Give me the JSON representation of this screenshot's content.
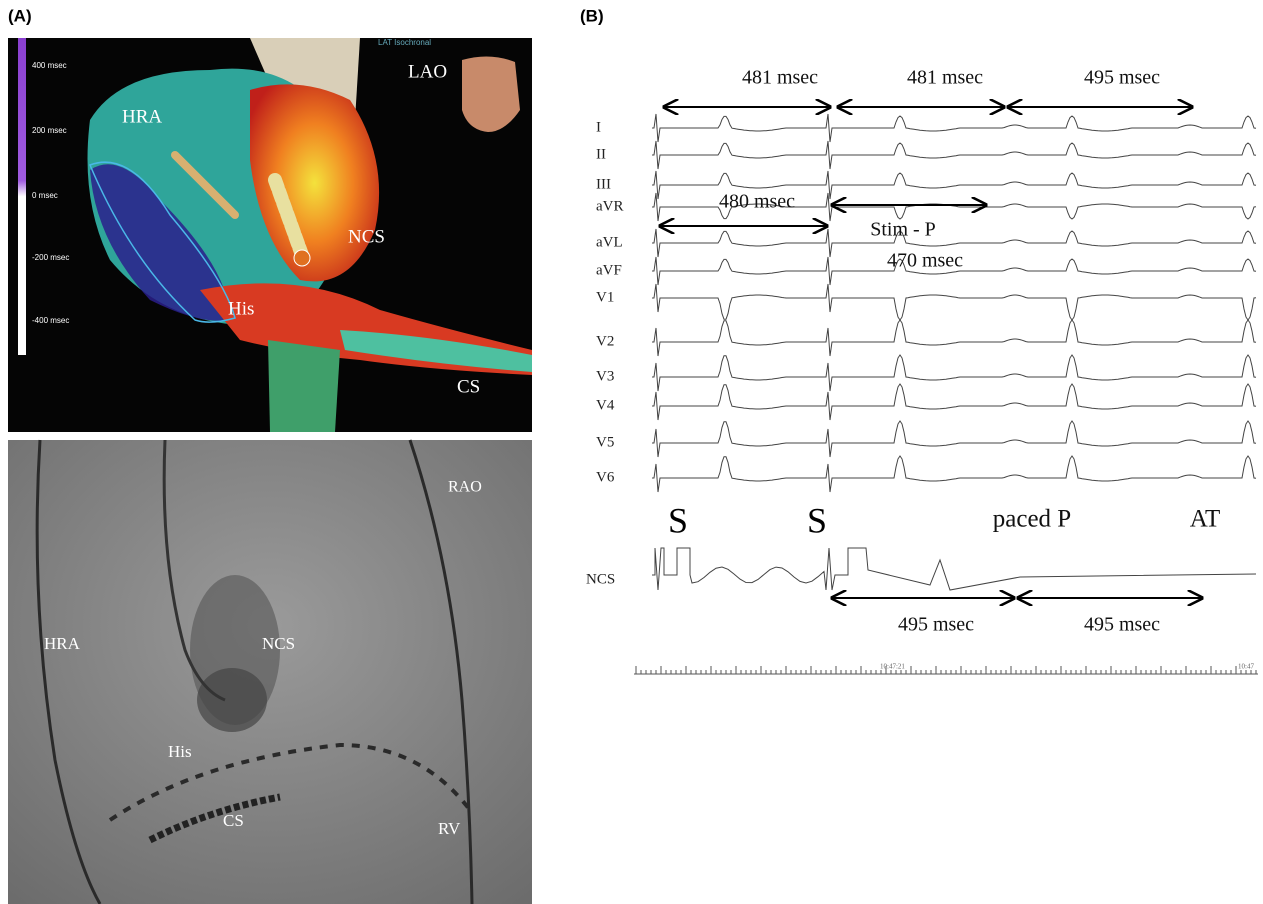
{
  "panel_a": {
    "label": "(A)",
    "map": {
      "caption": "LAT Isochronal",
      "scale_labels": [
        "400 msec",
        "200 msec",
        "0 msec",
        "-200 msec",
        "-400 msec"
      ],
      "view": "LAO",
      "hra": "HRA",
      "his": "His",
      "ncs": "NCS",
      "cs": "CS"
    },
    "fluoro": {
      "view": "RAO",
      "hra": "HRA",
      "ncs": "NCS",
      "his": "His",
      "cs": "CS",
      "rv": "RV"
    }
  },
  "panel_b": {
    "label": "(B)",
    "leads": [
      "I",
      "II",
      "III",
      "aVR",
      "aVL",
      "aVF",
      "V1",
      "V2",
      "V3",
      "V4",
      "V5",
      "V6"
    ],
    "intervals_top": [
      "481 msec",
      "481 msec",
      "495 msec"
    ],
    "interval_stim": "480 msec",
    "stim_p": "Stim - P",
    "stim_p_value": "470 msec",
    "markers": [
      "S",
      "S",
      "paced P",
      "AT"
    ],
    "ncs_label": "NCS",
    "intervals_ncs": [
      "495 msec",
      "495 msec"
    ],
    "times": [
      "10:47:21",
      "10:47"
    ]
  }
}
